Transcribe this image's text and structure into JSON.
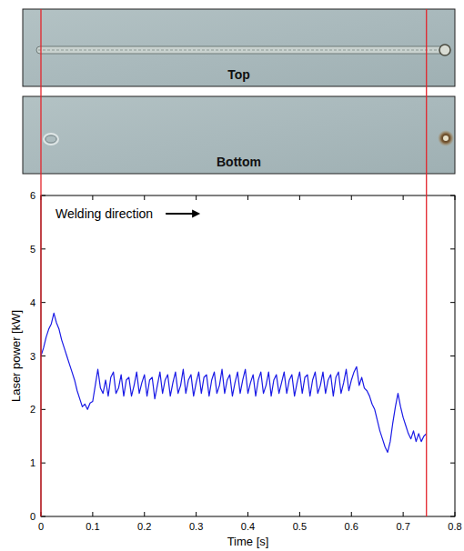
{
  "chart_data": {
    "type": "line",
    "xlabel": "Time [s]",
    "ylabel": "Laser power [kW]",
    "annotation": "Welding direction",
    "vlines": [
      0,
      0.745
    ],
    "color": "#1a1ae6",
    "xlim": [
      0,
      0.8
    ],
    "xticks": [
      0,
      0.1,
      0.2,
      0.3,
      0.4,
      0.5,
      0.6,
      0.7,
      0.8
    ],
    "ylim": [
      0,
      6
    ],
    "yticks": [
      0,
      1,
      2,
      3,
      4,
      5,
      6
    ],
    "grid": false,
    "x": [
      0,
      0.005,
      0.01,
      0.015,
      0.02,
      0.025,
      0.03,
      0.035,
      0.04,
      0.045,
      0.05,
      0.055,
      0.06,
      0.065,
      0.07,
      0.075,
      0.08,
      0.085,
      0.09,
      0.095,
      0.1,
      0.105,
      0.11,
      0.115,
      0.12,
      0.125,
      0.13,
      0.135,
      0.14,
      0.145,
      0.15,
      0.155,
      0.16,
      0.165,
      0.17,
      0.175,
      0.18,
      0.185,
      0.19,
      0.195,
      0.2,
      0.205,
      0.21,
      0.215,
      0.22,
      0.225,
      0.23,
      0.235,
      0.24,
      0.245,
      0.25,
      0.255,
      0.26,
      0.265,
      0.27,
      0.275,
      0.28,
      0.285,
      0.29,
      0.295,
      0.3,
      0.305,
      0.31,
      0.315,
      0.32,
      0.325,
      0.33,
      0.335,
      0.34,
      0.345,
      0.35,
      0.355,
      0.36,
      0.365,
      0.37,
      0.375,
      0.38,
      0.385,
      0.39,
      0.395,
      0.4,
      0.405,
      0.41,
      0.415,
      0.42,
      0.425,
      0.43,
      0.435,
      0.44,
      0.445,
      0.45,
      0.455,
      0.46,
      0.465,
      0.47,
      0.475,
      0.48,
      0.485,
      0.49,
      0.495,
      0.5,
      0.505,
      0.51,
      0.515,
      0.52,
      0.525,
      0.53,
      0.535,
      0.54,
      0.545,
      0.55,
      0.555,
      0.56,
      0.565,
      0.57,
      0.575,
      0.58,
      0.585,
      0.59,
      0.595,
      0.6,
      0.605,
      0.61,
      0.615,
      0.62,
      0.625,
      0.63,
      0.635,
      0.64,
      0.645,
      0.65,
      0.655,
      0.66,
      0.665,
      0.67,
      0.675,
      0.68,
      0.685,
      0.69,
      0.695,
      0.7,
      0.705,
      0.71,
      0.715,
      0.72,
      0.725,
      0.73,
      0.735,
      0.74,
      0.745
    ],
    "values": [
      3.0,
      3.15,
      3.35,
      3.5,
      3.6,
      3.8,
      3.62,
      3.5,
      3.3,
      3.15,
      3.0,
      2.85,
      2.7,
      2.55,
      2.35,
      2.2,
      2.05,
      2.1,
      2.0,
      2.12,
      2.15,
      2.45,
      2.75,
      2.4,
      2.3,
      2.55,
      2.25,
      2.6,
      2.7,
      2.3,
      2.4,
      2.65,
      2.25,
      2.55,
      2.6,
      2.25,
      2.45,
      2.7,
      2.3,
      2.5,
      2.65,
      2.25,
      2.55,
      2.6,
      2.2,
      2.45,
      2.7,
      2.3,
      2.55,
      2.65,
      2.25,
      2.5,
      2.7,
      2.3,
      2.45,
      2.75,
      2.3,
      2.55,
      2.65,
      2.25,
      2.5,
      2.7,
      2.3,
      2.6,
      2.65,
      2.25,
      2.55,
      2.7,
      2.3,
      2.45,
      2.75,
      2.3,
      2.55,
      2.65,
      2.25,
      2.5,
      2.7,
      2.3,
      2.55,
      2.75,
      2.3,
      2.5,
      2.65,
      2.25,
      2.55,
      2.7,
      2.3,
      2.45,
      2.7,
      2.25,
      2.55,
      2.65,
      2.3,
      2.5,
      2.7,
      2.3,
      2.55,
      2.65,
      2.25,
      2.5,
      2.7,
      2.3,
      2.6,
      2.65,
      2.25,
      2.55,
      2.7,
      2.3,
      2.45,
      2.7,
      2.3,
      2.55,
      2.65,
      2.25,
      2.6,
      2.7,
      2.3,
      2.5,
      2.75,
      2.35,
      2.55,
      2.7,
      2.8,
      2.45,
      2.6,
      2.4,
      2.35,
      2.25,
      2.1,
      2.0,
      1.8,
      1.6,
      1.45,
      1.3,
      1.2,
      1.4,
      1.75,
      2.05,
      2.3,
      2.05,
      1.85,
      1.7,
      1.55,
      1.45,
      1.6,
      1.4,
      1.55,
      1.4,
      1.5,
      1.55
    ]
  },
  "photos": [
    {
      "label": "Top"
    },
    {
      "label": "Bottom"
    }
  ]
}
